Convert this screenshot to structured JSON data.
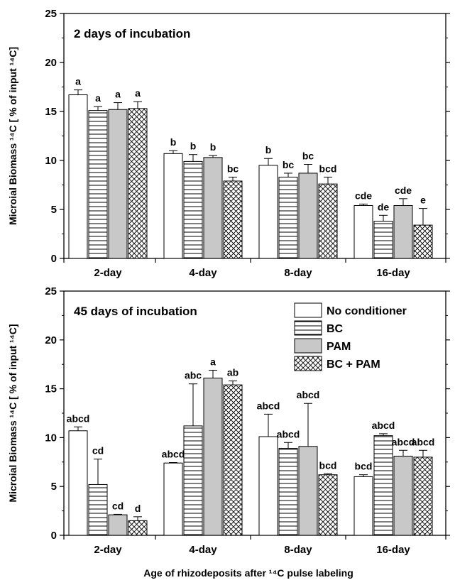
{
  "colors": {
    "no_conditioner": "#ffffff",
    "pam": "#c8c8c8",
    "stroke": "#000000"
  },
  "xlabel": "Age of rhizodeposits after ¹⁴C pulse labeling",
  "legend": [
    "No conditioner",
    "BC",
    "PAM",
    "BC + PAM"
  ],
  "chart_data": [
    {
      "type": "bar",
      "title": "2 days of incubation",
      "ylabel": "Microial Biomass ¹⁴C [ % of input ¹⁴C]",
      "ylim": [
        0,
        25
      ],
      "yticks": [
        "0",
        "5",
        "10",
        "15",
        "20",
        "25"
      ],
      "categories": [
        "2-day",
        "4-day",
        "8-day",
        "16-day"
      ],
      "series": [
        {
          "name": "No conditioner",
          "pattern": "white",
          "values": [
            16.7,
            10.7,
            9.5,
            5.4
          ],
          "errors": [
            0.5,
            0.3,
            0.7,
            0.15
          ],
          "letters": [
            "a",
            "b",
            "b",
            "cde"
          ]
        },
        {
          "name": "BC",
          "pattern": "horizontal",
          "values": [
            15.1,
            9.9,
            8.3,
            3.8
          ],
          "errors": [
            0.4,
            0.7,
            0.4,
            0.6
          ],
          "letters": [
            "a",
            "b",
            "bc",
            "de"
          ]
        },
        {
          "name": "PAM",
          "pattern": "gray",
          "values": [
            15.2,
            10.3,
            8.7,
            5.4
          ],
          "errors": [
            0.7,
            0.2,
            0.9,
            0.7
          ],
          "letters": [
            "a",
            "b",
            "bc",
            "cde"
          ]
        },
        {
          "name": "BC + PAM",
          "pattern": "crosshatch",
          "values": [
            15.3,
            7.9,
            7.6,
            3.4
          ],
          "errors": [
            0.7,
            0.4,
            0.7,
            1.7
          ],
          "letters": [
            "a",
            "bc",
            "bcd",
            "e"
          ]
        }
      ]
    },
    {
      "type": "bar",
      "title": "45 days of incubation",
      "ylabel": "Microial Biomass ¹⁴C [ % of input ¹⁴C]",
      "ylim": [
        0,
        25
      ],
      "yticks": [
        "0",
        "5",
        "10",
        "15",
        "20",
        "25"
      ],
      "categories": [
        "2-day",
        "4-day",
        "8-day",
        "16-day"
      ],
      "series": [
        {
          "name": "No conditioner",
          "pattern": "white",
          "values": [
            10.7,
            7.4,
            10.1,
            6.0
          ],
          "errors": [
            0.4,
            0.05,
            2.3,
            0.2
          ],
          "letters": [
            "abcd",
            "abcd",
            "abcd",
            "bcd"
          ]
        },
        {
          "name": "BC",
          "pattern": "horizontal",
          "values": [
            5.2,
            11.2,
            8.9,
            10.2
          ],
          "errors": [
            2.6,
            4.3,
            0.6,
            0.2
          ],
          "letters": [
            "cd",
            "abc",
            "abcd",
            "abcd"
          ]
        },
        {
          "name": "PAM",
          "pattern": "gray",
          "values": [
            2.1,
            16.1,
            9.1,
            8.1
          ],
          "errors": [
            0.05,
            0.8,
            4.4,
            0.6
          ],
          "letters": [
            "cd",
            "a",
            "abcd",
            "abcd"
          ]
        },
        {
          "name": "BC + PAM",
          "pattern": "crosshatch",
          "values": [
            1.5,
            15.4,
            6.2,
            8.0
          ],
          "errors": [
            0.4,
            0.4,
            0.1,
            0.7
          ],
          "letters": [
            "d",
            "ab",
            "bcd",
            "abcd"
          ]
        }
      ]
    }
  ]
}
